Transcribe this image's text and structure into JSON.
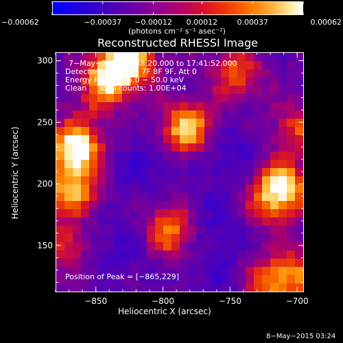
{
  "chart_data": {
    "type": "heatmap",
    "title": "Reconstructed RHESSI Image",
    "xlabel": "Heliocentric X (arcsec)",
    "ylabel": "Heliocentric Y (arcsec)",
    "xlim": [
      -880,
      -695
    ],
    "ylim": [
      112,
      307
    ],
    "x_ticks": [
      "−850",
      "−800",
      "−750",
      "−700"
    ],
    "x_tick_values": [
      -850,
      -800,
      -750,
      -700
    ],
    "y_ticks": [
      "300",
      "250",
      "200",
      "150"
    ],
    "y_tick_values": [
      300,
      250,
      200,
      150
    ],
    "colorbar": {
      "ticks": [
        "−0.00062",
        "−0.00037",
        "−0.00012",
        "0.00012",
        "0.00037",
        "0.00062"
      ],
      "tick_values": [
        -0.00062,
        -0.00037,
        -0.00012,
        0.00012,
        0.00037,
        0.00062
      ],
      "range": [
        -0.00062,
        0.00062
      ],
      "colormap": "blue-purple-red-orange-yellow-white"
    },
    "units_label": "(photons cm⁻² s⁻¹ asec⁻²)",
    "annotations": [
      "7−May−2015 17:38:20.000 to 17:41:52.000",
      "Detectors: 3F 5F 6F 7F 8F 9F, Att 0",
      "Energy Range: 25.0 − 50.0 keV",
      "Clean     Total counts: 1.00E+04"
    ],
    "peak_label": "Position of Peak = [−865,229]",
    "peak_position": [
      -865,
      229
    ],
    "sources": [
      {
        "x": -865,
        "y": 229,
        "strength": 1.0
      },
      {
        "x": -868,
        "y": 195,
        "strength": 0.72
      },
      {
        "x": -838,
        "y": 292,
        "strength": 0.82
      },
      {
        "x": -822,
        "y": 300,
        "strength": 0.6
      },
      {
        "x": -782,
        "y": 245,
        "strength": 0.85
      },
      {
        "x": -795,
        "y": 162,
        "strength": 0.7
      },
      {
        "x": -745,
        "y": 290,
        "strength": 0.55
      },
      {
        "x": -710,
        "y": 200,
        "strength": 0.75
      },
      {
        "x": -720,
        "y": 185,
        "strength": 0.5
      },
      {
        "x": -700,
        "y": 245,
        "strength": 0.45
      },
      {
        "x": -875,
        "y": 150,
        "strength": 0.45
      },
      {
        "x": -720,
        "y": 118,
        "strength": 0.6
      },
      {
        "x": -700,
        "y": 130,
        "strength": 0.45
      },
      {
        "x": -850,
        "y": 270,
        "strength": 0.35
      }
    ],
    "negative_regions": [
      {
        "x": -750,
        "y": 225,
        "strength": 0.9
      },
      {
        "x": -760,
        "y": 170,
        "strength": 0.85
      },
      {
        "x": -815,
        "y": 215,
        "strength": 0.8
      },
      {
        "x": -830,
        "y": 150,
        "strength": 0.75
      },
      {
        "x": -760,
        "y": 125,
        "strength": 0.7
      }
    ]
  },
  "footer": {
    "timestamp": "8−May−2015 03:24"
  }
}
